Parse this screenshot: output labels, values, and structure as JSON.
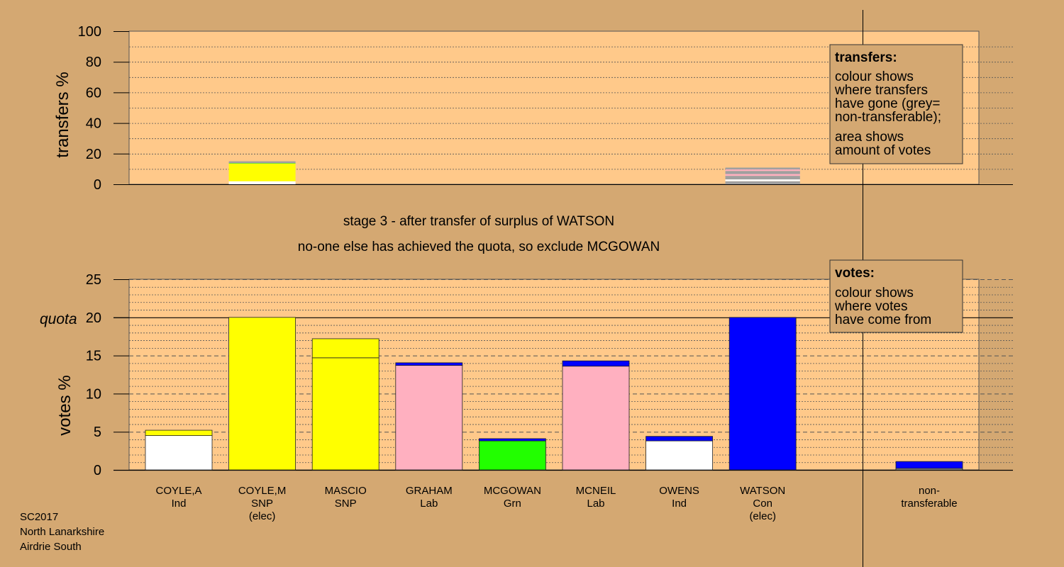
{
  "captions": {
    "stage": "stage 3 - after transfer of surplus of WATSON",
    "note": "no-one else has achieved the quota, so exclude MCGOWAN"
  },
  "legend_transfers": {
    "title": "transfers:",
    "lines": [
      "colour shows",
      "where transfers",
      "have gone (grey=",
      "non-transferable);",
      "area shows",
      "amount of votes"
    ]
  },
  "legend_votes": {
    "title": "votes:",
    "lines": [
      "colour shows",
      "where votes",
      "have come from"
    ]
  },
  "footer": {
    "election": "SC2017",
    "council": "North Lanarkshire",
    "ward": "Airdrie South"
  },
  "colors": {
    "background": "#d4a872",
    "plot_area": "#ffc98a",
    "Ind": "#ffffff",
    "SNP": "#ffff00",
    "Lab": "#ffb0c0",
    "Grn": "#22ff00",
    "Con": "#0000ff",
    "nontransferable": "#a0a0a0"
  },
  "chart_data": [
    {
      "type": "bar",
      "id": "transfers",
      "ylabel": "transfers %",
      "ylim": [
        0,
        100
      ],
      "yticks": [
        0,
        20,
        40,
        60,
        80,
        100
      ],
      "categories": [
        "COYLE,A",
        "COYLE,M",
        "MASCIO",
        "GRAHAM",
        "MCGOWAN",
        "MCNEIL",
        "OWENS",
        "WATSON"
      ],
      "bars": [
        {
          "category": "COYLE,M",
          "width_fraction": 1.0,
          "segments": [
            {
              "party": "Ind",
              "value": 2
            },
            {
              "party": "SNP",
              "value": 11.5
            },
            {
              "party": "Grn",
              "value": 0.3
            },
            {
              "party": "nontransferable",
              "value": 1.2
            }
          ]
        },
        {
          "category": "WATSON",
          "width_fraction": 1.12,
          "segments": [
            {
              "party": "nontransferable",
              "value": 2
            },
            {
              "party": "Ind",
              "value": 1.2
            },
            {
              "party": "nontransferable",
              "value": 2.3
            },
            {
              "party": "Lab",
              "value": 1.2
            },
            {
              "party": "nontransferable",
              "value": 2
            },
            {
              "party": "Lab",
              "value": 1
            },
            {
              "party": "nontransferable",
              "value": 1.2
            }
          ]
        }
      ],
      "grid": true
    },
    {
      "type": "bar",
      "id": "votes",
      "ylabel": "votes %",
      "ylim": [
        0,
        25
      ],
      "yticks": [
        0,
        5,
        10,
        15,
        20,
        25
      ],
      "quota": 20,
      "quota_label": "quota",
      "bars": [
        {
          "name": "COYLE,A",
          "party": "Ind",
          "elected": "",
          "segments": [
            {
              "party": "Ind",
              "value": 4.5
            },
            {
              "party": "SNP",
              "value": 0.7
            }
          ]
        },
        {
          "name": "COYLE,M",
          "party": "SNP",
          "elected": "(elec)",
          "segments": [
            {
              "party": "SNP",
              "value": 20
            }
          ]
        },
        {
          "name": "MASCIO",
          "party": "SNP",
          "elected": "",
          "segments": [
            {
              "party": "SNP",
              "value": 14.7
            },
            {
              "party": "SNP",
              "value": 2.5
            }
          ]
        },
        {
          "name": "GRAHAM",
          "party": "Lab",
          "elected": "",
          "segments": [
            {
              "party": "Lab",
              "value": 13.7
            },
            {
              "party": "Con",
              "value": 0.35
            }
          ]
        },
        {
          "name": "MCGOWAN",
          "party": "Grn",
          "elected": "",
          "segments": [
            {
              "party": "Grn",
              "value": 3.8
            },
            {
              "party": "Con",
              "value": 0.3
            }
          ]
        },
        {
          "name": "MCNEIL",
          "party": "Lab",
          "elected": "",
          "segments": [
            {
              "party": "Lab",
              "value": 13.6
            },
            {
              "party": "Con",
              "value": 0.7
            }
          ]
        },
        {
          "name": "OWENS",
          "party": "Ind",
          "elected": "",
          "segments": [
            {
              "party": "Ind",
              "value": 3.8
            },
            {
              "party": "Con",
              "value": 0.6
            }
          ]
        },
        {
          "name": "WATSON",
          "party": "Con",
          "elected": "(elec)",
          "segments": [
            {
              "party": "Con",
              "value": 20
            }
          ]
        }
      ],
      "nontransferable": {
        "label_lines": [
          "non-",
          "transferable"
        ],
        "segments": [
          {
            "party": "nontransferable",
            "value": 0.2
          },
          {
            "party": "Con",
            "value": 0.9
          }
        ]
      },
      "grid": true
    }
  ]
}
